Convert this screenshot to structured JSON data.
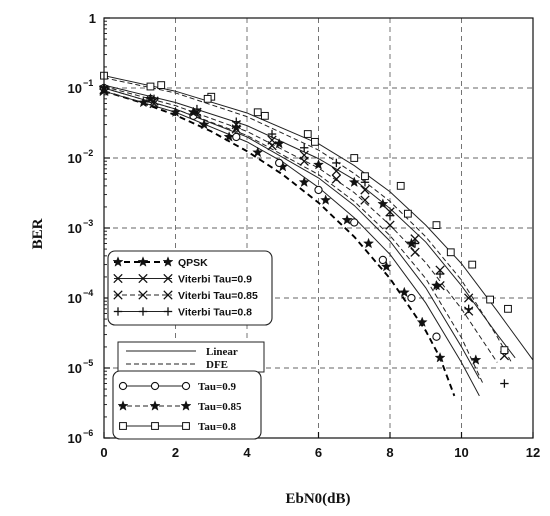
{
  "chart_data": {
    "type": "line",
    "title": "",
    "xlabel": "EbN0(dB)",
    "ylabel": "BER",
    "xlim": [
      0,
      12
    ],
    "ylim": [
      1e-06,
      1
    ],
    "y_scale": "log",
    "grid": true,
    "x_ticks": [
      "0",
      "2",
      "4",
      "6",
      "8",
      "10",
      "12"
    ],
    "y_ticks": [
      {
        "base": "1",
        "exp": ""
      },
      {
        "base": "10",
        "exp": "−1"
      },
      {
        "base": "10",
        "exp": "−2"
      },
      {
        "base": "10",
        "exp": "−3"
      },
      {
        "base": "10",
        "exp": "−4"
      },
      {
        "base": "10",
        "exp": "−5"
      },
      {
        "base": "10",
        "exp": "−6"
      }
    ],
    "legend_groups": [
      {
        "placement": "middle-left",
        "entries": [
          "QPSK",
          "Viterbi Tau=0.9",
          "Viterbi Tau=0.85",
          "Viterbi Tau=0.8"
        ]
      },
      {
        "placement": "lower-left",
        "entries": [
          "Linear",
          "DFE"
        ]
      },
      {
        "placement": "bottom-left",
        "entries": [
          "Tau=0.9",
          "Tau=0.85",
          "Tau=0.8"
        ]
      }
    ],
    "series": [
      {
        "name": "QPSK",
        "marker": "star",
        "line": "dashed-bold",
        "x": [
          0,
          1,
          2,
          3,
          4,
          5,
          6,
          7,
          8,
          9,
          9.4,
          9.8
        ],
        "y": [
          0.09,
          0.063,
          0.041,
          0.024,
          0.0125,
          0.0058,
          0.0023,
          0.00075,
          0.00019,
          3.4e-05,
          1.4e-05,
          4e-06
        ],
        "marker_x": [
          0,
          1.1,
          2.0,
          2.8,
          3.5,
          4.3,
          5.0,
          5.6,
          6.2,
          6.8,
          7.4,
          7.9,
          8.4,
          8.9,
          9.4
        ],
        "marker_y": [
          0.092,
          0.062,
          0.045,
          0.03,
          0.02,
          0.012,
          0.0075,
          0.0045,
          0.0025,
          0.0013,
          0.0006,
          0.00028,
          0.00012,
          4.5e-05,
          1.4e-05
        ]
      },
      {
        "name": "Viterbi Tau=0.9",
        "marker": "x",
        "line": "solid",
        "x": [
          0,
          2,
          4,
          6,
          7,
          8,
          9,
          10,
          10.5
        ],
        "y": [
          0.1,
          0.05,
          0.02,
          0.0052,
          0.0021,
          0.00065,
          0.00014,
          2e-05,
          7e-06
        ],
        "marker_x": [
          0,
          1.4,
          2.6,
          3.7,
          4.7,
          5.6,
          6.5,
          7.3,
          8.0,
          8.7,
          9.4,
          10.2
        ],
        "marker_y": [
          0.09,
          0.06,
          0.042,
          0.026,
          0.015,
          0.009,
          0.005,
          0.0025,
          0.0011,
          0.00045,
          0.00015,
          6.5e-05
        ]
      },
      {
        "name": "Viterbi Tau=0.85",
        "marker": "x",
        "line": "dashed",
        "x": [
          0,
          2,
          4,
          6,
          7,
          8,
          9,
          10,
          11
        ],
        "y": [
          0.105,
          0.056,
          0.024,
          0.0072,
          0.0032,
          0.0011,
          0.00032,
          7e-05,
          1.2e-05
        ],
        "marker_x": [
          0,
          1.4,
          2.6,
          3.7,
          4.7,
          5.6,
          6.5,
          7.3,
          8.0,
          8.7,
          9.4,
          10.2,
          11.2
        ],
        "marker_y": [
          0.095,
          0.065,
          0.045,
          0.03,
          0.018,
          0.011,
          0.0065,
          0.0035,
          0.0017,
          0.0007,
          0.00025,
          0.0001,
          1.5e-05
        ]
      },
      {
        "name": "Viterbi Tau=0.8",
        "marker": "plus",
        "line": "solid",
        "x": [
          0,
          2,
          4,
          6,
          7,
          8,
          9,
          10,
          11,
          11.5
        ],
        "y": [
          0.11,
          0.062,
          0.029,
          0.0098,
          0.0049,
          0.0019,
          0.00063,
          0.00015,
          3e-05,
          1.4e-05
        ],
        "marker_x": [
          0,
          1.4,
          2.6,
          3.7,
          4.7,
          5.6,
          6.5,
          7.3,
          8.0,
          8.7,
          9.4,
          10.2,
          11.2
        ],
        "marker_y": [
          0.1,
          0.07,
          0.05,
          0.033,
          0.022,
          0.014,
          0.0085,
          0.0045,
          0.0015,
          0.0006,
          0.00022,
          7e-05,
          6e-06
        ]
      },
      {
        "name": "Tau=0.9",
        "marker": "circle",
        "line": "solid",
        "x": [
          0,
          2,
          4,
          5,
          6,
          7,
          8,
          9,
          10,
          10.5
        ],
        "y": [
          0.09,
          0.045,
          0.017,
          0.0088,
          0.0038,
          0.0014,
          0.00042,
          8.5e-05,
          1.2e-05,
          4e-06
        ],
        "marker_x": [
          0,
          1.3,
          2.5,
          3.7,
          4.9,
          6.0,
          7.0,
          7.8,
          8.6,
          9.3
        ],
        "marker_y": [
          0.1,
          0.07,
          0.04,
          0.02,
          0.0085,
          0.0035,
          0.0012,
          0.00035,
          0.0001,
          2.8e-05
        ]
      },
      {
        "name": "Tau=0.85",
        "marker": "star",
        "line": "dashed",
        "x": [
          0,
          2,
          4,
          6,
          7,
          8,
          9,
          10,
          10.6
        ],
        "y": [
          0.1,
          0.05,
          0.021,
          0.0058,
          0.0024,
          0.00078,
          0.00019,
          2.7e-05,
          6e-06
        ],
        "marker_x": [
          0,
          1.3,
          2.5,
          3.7,
          4.9,
          6.0,
          7.0,
          7.8,
          8.6,
          9.3,
          10.4
        ],
        "marker_y": [
          0.1,
          0.07,
          0.045,
          0.027,
          0.016,
          0.008,
          0.0045,
          0.0022,
          0.0006,
          0.00015,
          1.3e-05
        ]
      },
      {
        "name": "Tau=0.8",
        "marker": "square",
        "line": "solid",
        "x": [
          0,
          2,
          4,
          6,
          7,
          8,
          9,
          10,
          11,
          12
        ],
        "y": [
          0.15,
          0.09,
          0.044,
          0.016,
          0.0078,
          0.0033,
          0.0011,
          0.00031,
          6.5e-05,
          1.3e-05
        ],
        "marker_x": [
          0,
          1.6,
          3.0,
          4.3,
          5.7,
          7.0,
          8.3,
          9.3,
          10.3,
          11.2
        ],
        "marker_y": [
          0.15,
          0.11,
          0.075,
          0.045,
          0.022,
          0.01,
          0.004,
          0.0011,
          0.0003,
          1.8e-05
        ]
      },
      {
        "name": "Tau=0.8",
        "marker": "square",
        "line": "dashed",
        "x": [
          0,
          2,
          4,
          6,
          7,
          8,
          9,
          10,
          11,
          11.4
        ],
        "y": [
          0.14,
          0.085,
          0.039,
          0.013,
          0.006,
          0.0024,
          0.00075,
          0.00018,
          2.8e-05,
          1.2e-05
        ],
        "marker_x": [
          1.3,
          2.9,
          4.5,
          5.9,
          7.3,
          8.5,
          9.7,
          10.8,
          11.3
        ],
        "marker_y": [
          0.105,
          0.07,
          0.04,
          0.017,
          0.0055,
          0.0016,
          0.00045,
          9.5e-05,
          7e-05
        ]
      }
    ]
  }
}
